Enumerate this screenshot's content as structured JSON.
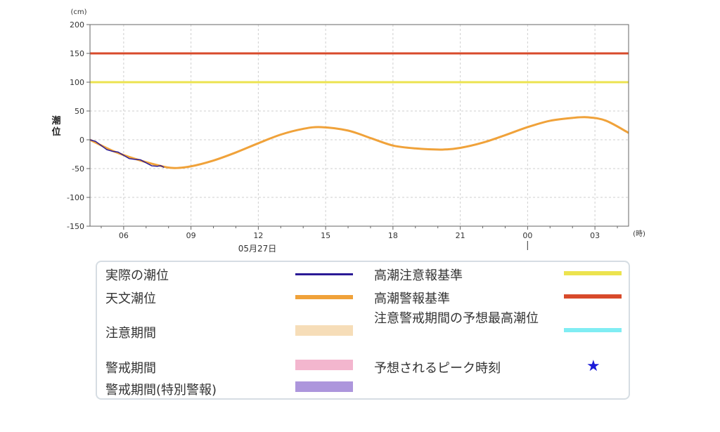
{
  "chart_data": {
    "type": "line",
    "unit_label": "(cm)",
    "ylabel": "潮位",
    "x_unit_label": "(時)",
    "date_label": "05月27日",
    "ylim": [
      -150,
      200
    ],
    "y_ticks": [
      200,
      150,
      100,
      50,
      0,
      -50,
      -100,
      -150
    ],
    "x_ticks": [
      {
        "label": "06",
        "hour": 6
      },
      {
        "label": "09",
        "hour": 9
      },
      {
        "label": "12",
        "hour": 12
      },
      {
        "label": "15",
        "hour": 15
      },
      {
        "label": "18",
        "hour": 18
      },
      {
        "label": "21",
        "hour": 21
      },
      {
        "label": "00",
        "hour": 24
      },
      {
        "label": "03",
        "hour": 27
      }
    ],
    "xlim_hours": [
      4.5,
      28.5
    ],
    "grid": true,
    "thresholds": [
      {
        "name": "高潮警報基準",
        "value": 150,
        "color": "#d84a2b"
      },
      {
        "name": "高潮注意報基準",
        "value": 100,
        "color": "#ece34f"
      }
    ],
    "series": [
      {
        "name": "天文潮位",
        "color": "#f0a23a",
        "x": [
          4.5,
          5.5,
          6.5,
          7.5,
          8.2,
          9.0,
          10.0,
          11.0,
          12.0,
          13.0,
          14.0,
          14.8,
          16.0,
          17.0,
          18.0,
          19.0,
          20.2,
          21.0,
          22.0,
          23.0,
          24.0,
          25.0,
          26.0,
          26.7,
          27.5,
          28.5
        ],
        "y": [
          0,
          -19,
          -33,
          -44,
          -49,
          -46,
          -36,
          -22,
          -6,
          9,
          19,
          22,
          16,
          3,
          -10,
          -15,
          -17,
          -14,
          -5,
          8,
          22,
          33,
          38,
          39,
          33,
          12
        ]
      },
      {
        "name": "実際の潮位",
        "color": "#2a1a96",
        "x": [
          4.5,
          5.0,
          5.5,
          6.0,
          6.5,
          7.0,
          7.5,
          7.8
        ],
        "y": [
          0,
          -10,
          -20,
          -27,
          -34,
          -40,
          -46,
          -48
        ]
      }
    ]
  },
  "legend": {
    "items": [
      {
        "label": "実際の潮位",
        "color": "#2a1a96"
      },
      {
        "label": "天文潮位",
        "color": "#f0a23a"
      },
      {
        "label": "注意期間",
        "color": "#f6ddb8"
      },
      {
        "label": "警戒期間",
        "color": "#f3b6ce"
      },
      {
        "label": "警戒期間(特別警報)",
        "color": "#ad96dc"
      },
      {
        "label": "高潮注意報基準",
        "color": "#ece34f"
      },
      {
        "label": "高潮警報基準",
        "color": "#d84a2b"
      },
      {
        "label": "注意警戒期間の予想最高潮位",
        "color": "#80edf3"
      },
      {
        "label": "予想されるピーク時刻",
        "color": "#1a1ad8",
        "icon": "star-icon"
      }
    ]
  }
}
